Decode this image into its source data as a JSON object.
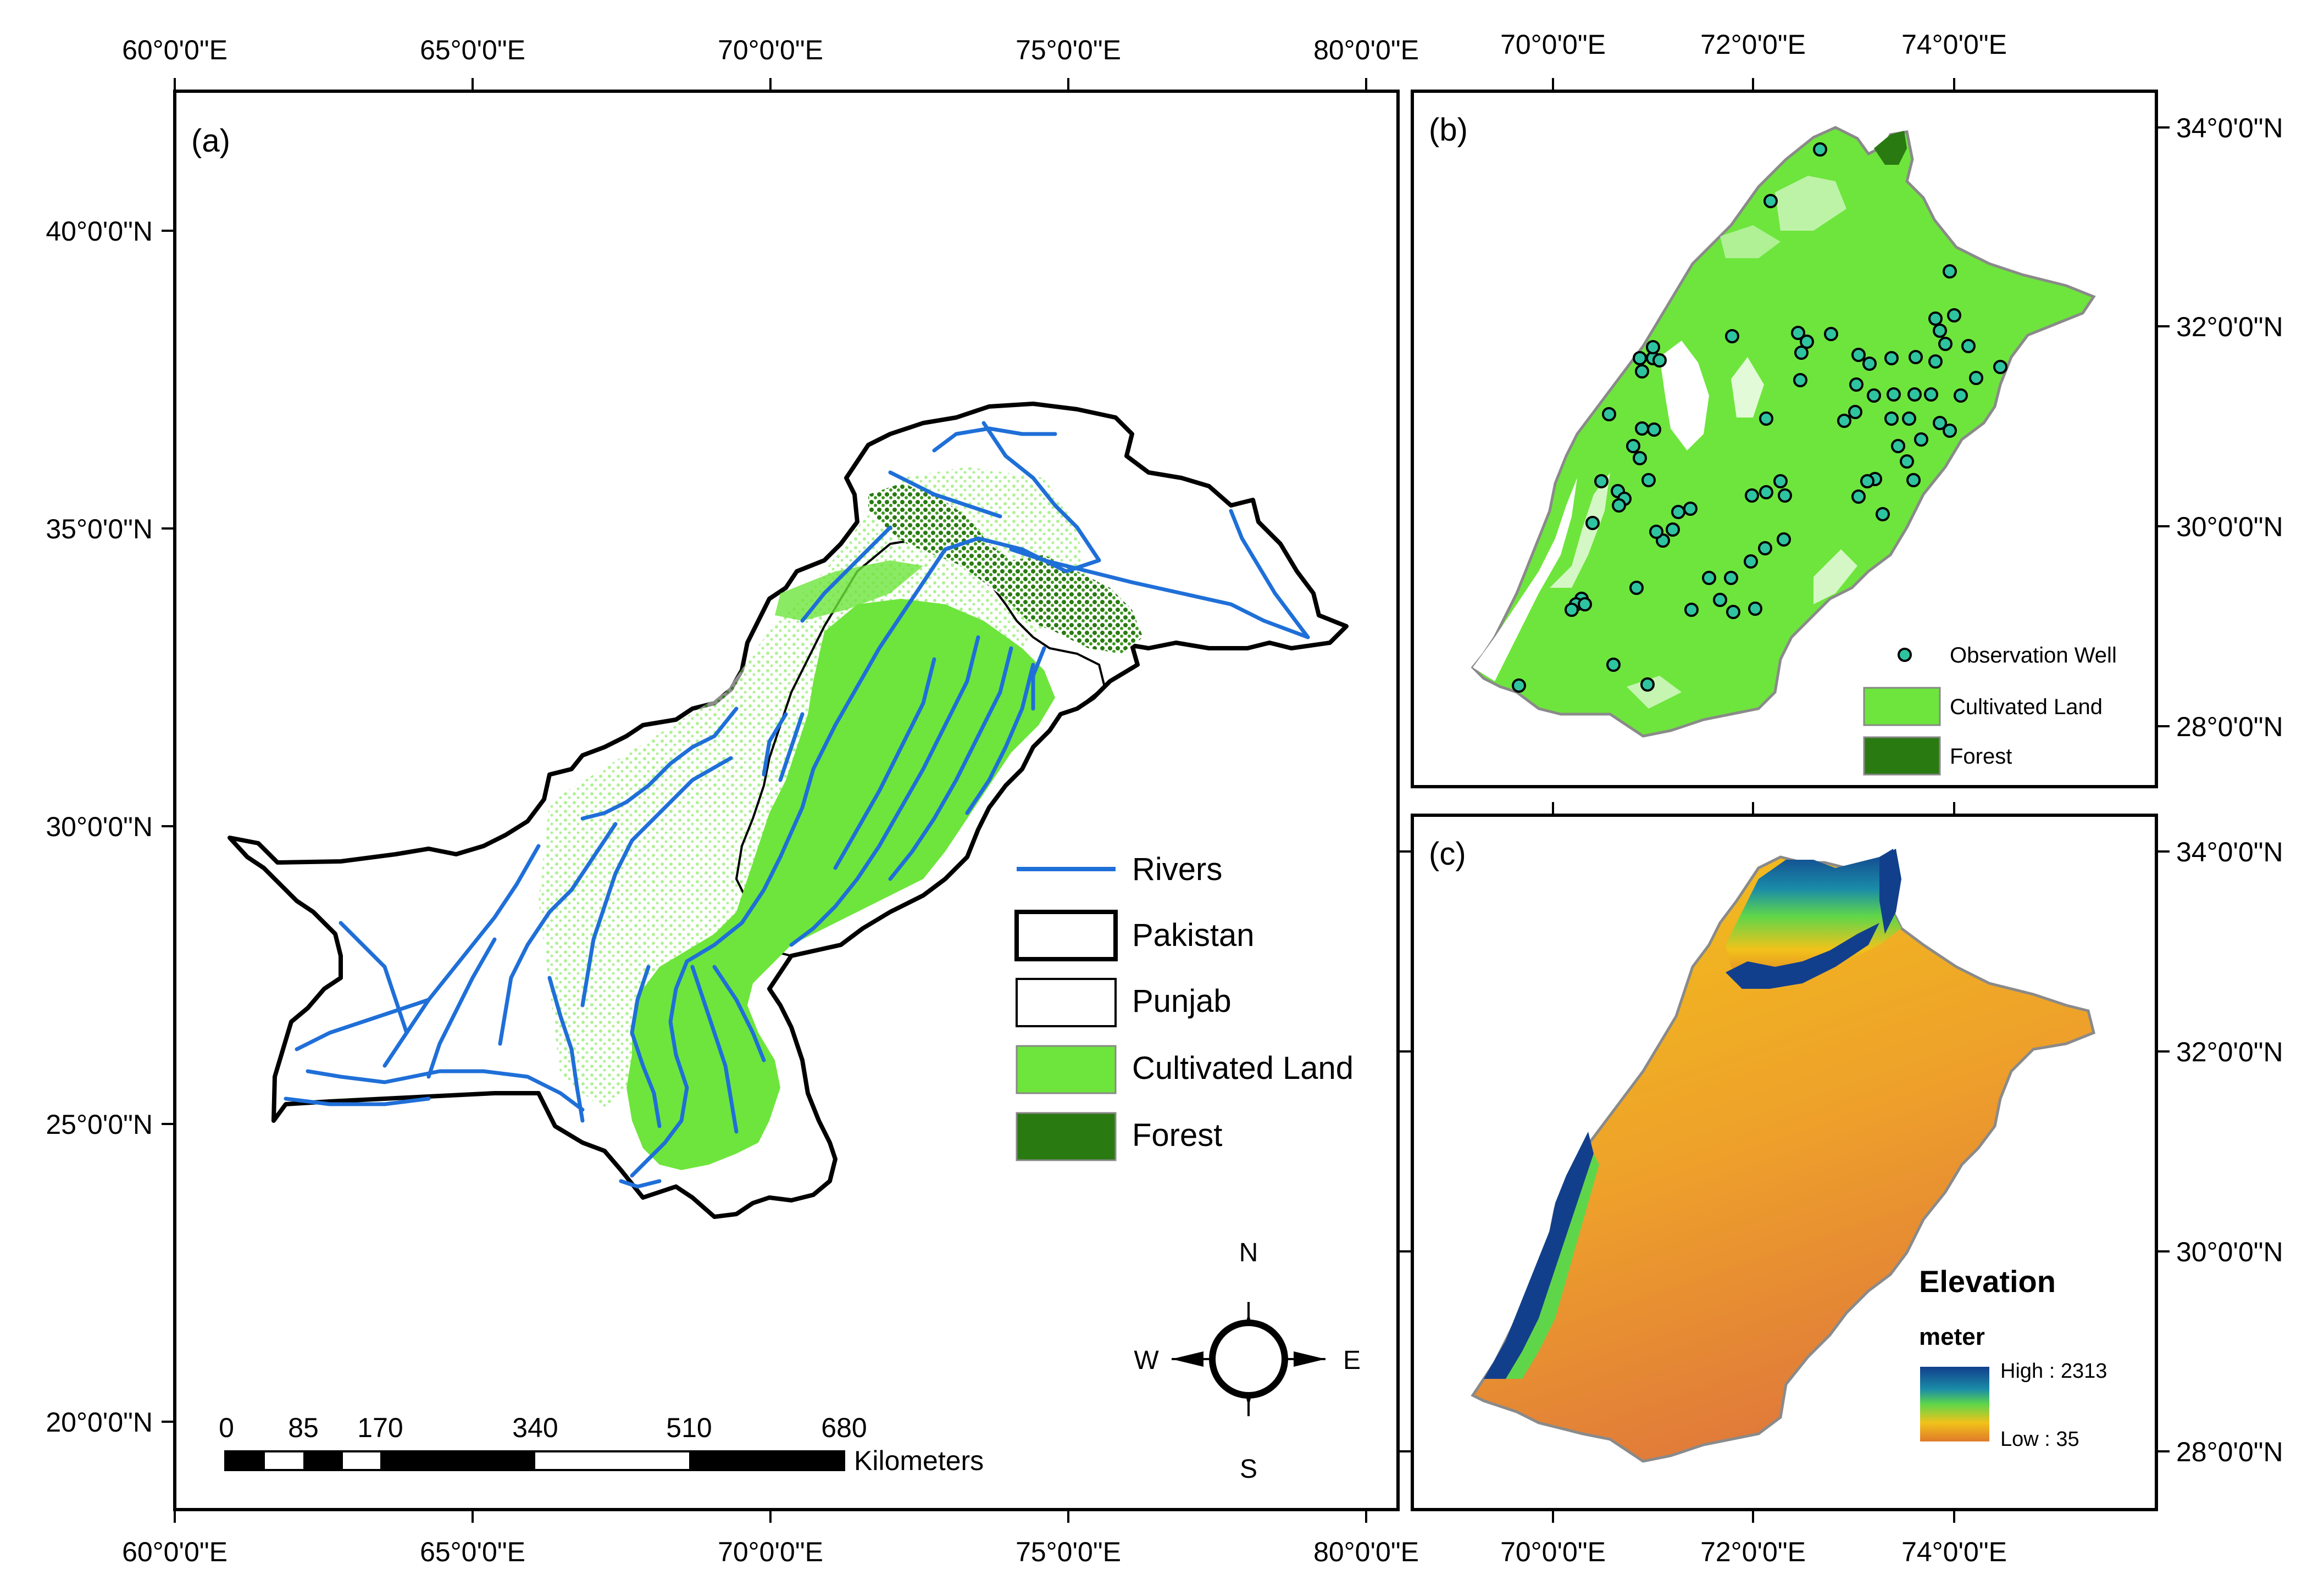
{
  "panel_a": {
    "tag": "(a)",
    "lon_ticks": [
      "60°0'0\"E",
      "65°0'0\"E",
      "70°0'0\"E",
      "75°0'0\"E",
      "80°0'0\"E"
    ],
    "lat_ticks": [
      "40°0'0\"N",
      "35°0'0\"N",
      "30°0'0\"N",
      "25°0'0\"N",
      "20°0'0\"N"
    ],
    "legend": [
      {
        "label": "Rivers",
        "kind": "line",
        "color": "#1f6fd8"
      },
      {
        "label": "Pakistan",
        "kind": "box-thick",
        "color": "#ffffff"
      },
      {
        "label": "Punjab",
        "kind": "box-thin",
        "color": "#ffffff"
      },
      {
        "label": "Cultivated Land",
        "kind": "fill",
        "color": "#6ee53c"
      },
      {
        "label": "Forest",
        "kind": "fill",
        "color": "#2a7a12"
      }
    ],
    "compass": {
      "n": "N",
      "s": "S",
      "e": "E",
      "w": "W"
    },
    "scale_bar": {
      "ticks": [
        "0",
        "85",
        "170",
        "340",
        "510",
        "680"
      ],
      "unit": "Kilometers"
    }
  },
  "panel_b": {
    "tag": "(b)",
    "lon_ticks": [
      "70°0'0\"E",
      "72°0'0\"E",
      "74°0'0\"E"
    ],
    "lat_ticks": [
      "34°0'0\"N",
      "32°0'0\"N",
      "30°0'0\"N",
      "28°0'0\"N"
    ],
    "legend": [
      {
        "label": "Observation Well",
        "kind": "dot",
        "color": "#2ec4a0"
      },
      {
        "label": "Cultivated Land",
        "kind": "fill",
        "color": "#6ee53c"
      },
      {
        "label": "Forest",
        "kind": "fill",
        "color": "#2a7a12"
      }
    ]
  },
  "panel_c": {
    "tag": "(c)",
    "lon_ticks": [
      "70°0'0\"E",
      "72°0'0\"E",
      "74°0'0\"E"
    ],
    "lat_ticks": [
      "34°0'0\"N",
      "32°0'0\"N",
      "30°0'0\"N",
      "28°0'0\"N"
    ],
    "elevation_legend": {
      "title": "Elevation",
      "unit": "meter",
      "high": "High : 2313",
      "low": "Low : 35",
      "high_value": 2313,
      "low_value": 35
    }
  },
  "colors": {
    "cultivated": "#6ee53c",
    "forest": "#2a7a12",
    "river": "#1f6fd8",
    "well": "#2ec4a0",
    "punjab_outline": "#8a8a8a",
    "elev_low": "#e07a2a",
    "elev_mid": "#f2c21a",
    "elev_high": "#123f8c"
  }
}
